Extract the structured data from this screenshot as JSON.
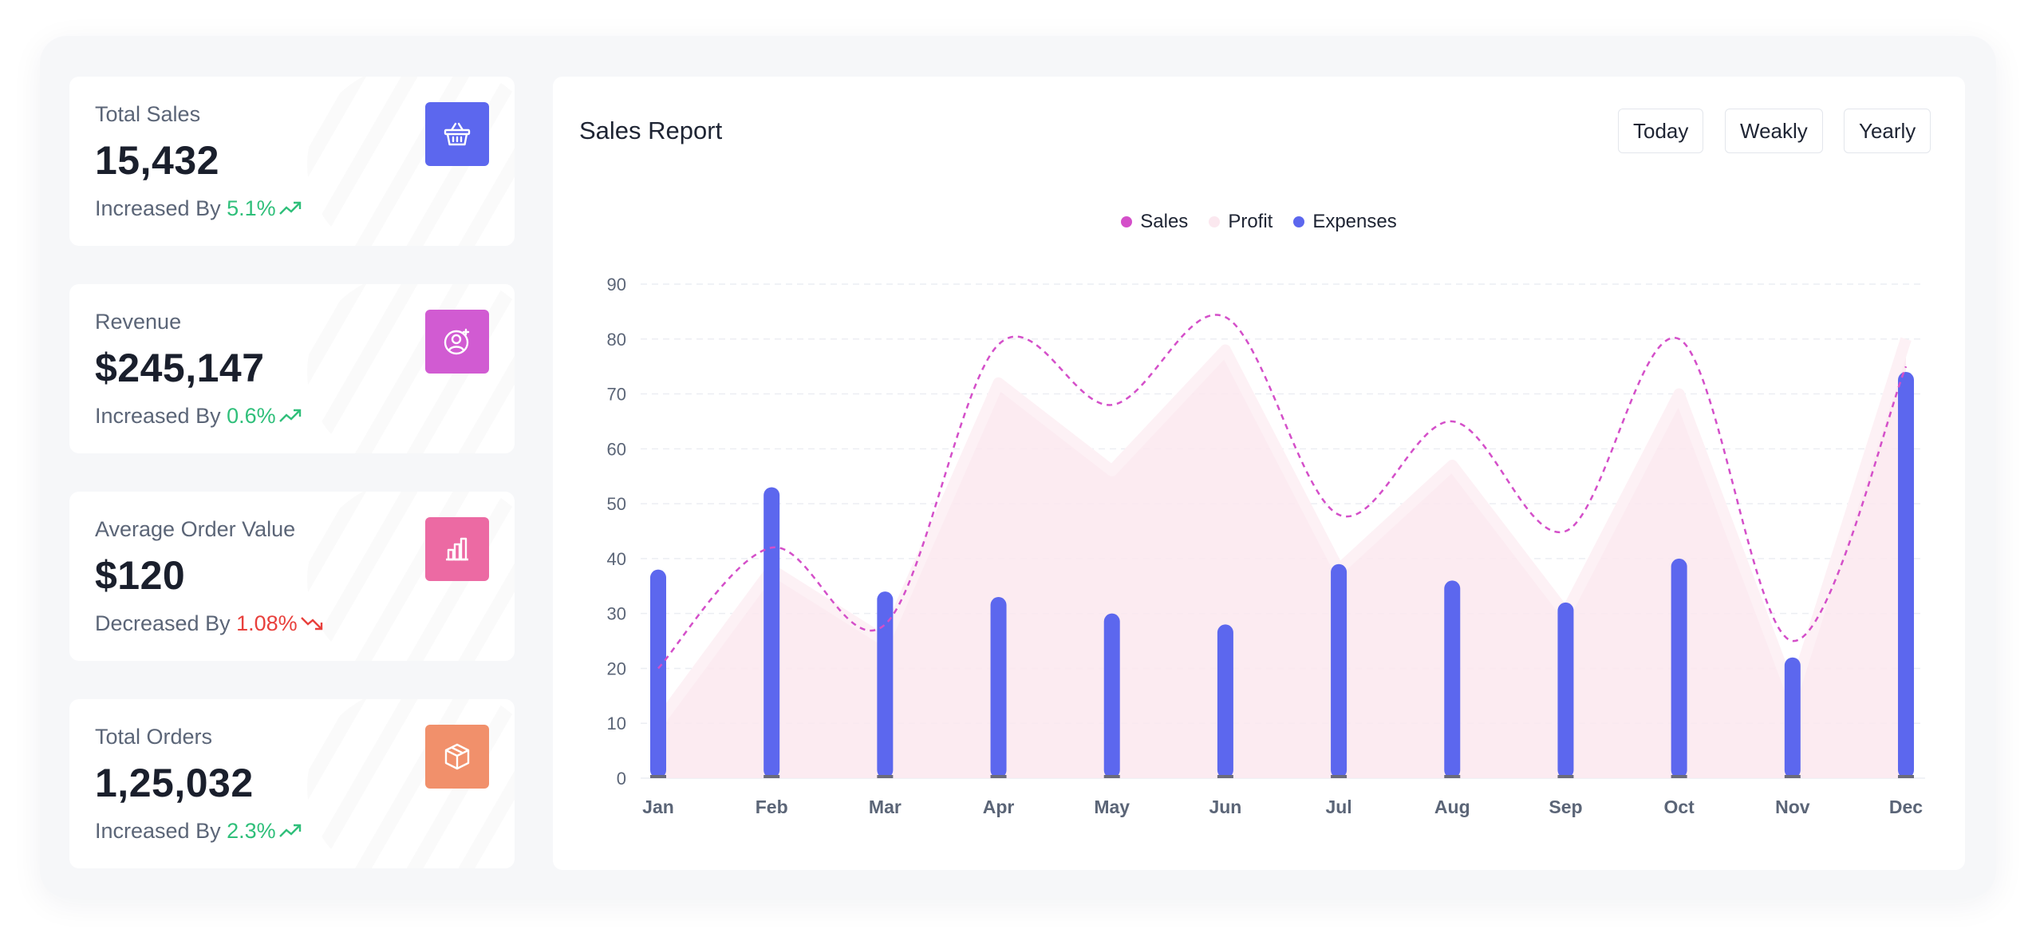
{
  "cards": [
    {
      "title": "Total Sales",
      "value": "15,432",
      "trend_label": "Increased By",
      "trend_value": "5.1%",
      "trend_dir": "up",
      "icon": "basket-icon",
      "icon_bg": "#5c67ee"
    },
    {
      "title": "Revenue",
      "value": "$245,147",
      "trend_label": "Increased By",
      "trend_value": "0.6%",
      "trend_dir": "up",
      "icon": "user-add-icon",
      "icon_bg": "#d15bd2"
    },
    {
      "title": "Average Order Value",
      "value": "$120",
      "trend_label": "Decreased By",
      "trend_value": "1.08%",
      "trend_dir": "down",
      "icon": "bar-chart-icon",
      "icon_bg": "#ec6aa3"
    },
    {
      "title": "Total Orders",
      "value": "1,25,032",
      "trend_label": "Increased By",
      "trend_value": "2.3%",
      "trend_dir": "up",
      "icon": "box-icon",
      "icon_bg": "#f1906b"
    }
  ],
  "report": {
    "title": "Sales Report",
    "buttons": [
      "Today",
      "Weakly",
      "Yearly"
    ]
  },
  "colors": {
    "sales": "#d44fc9",
    "profit": "#fbe8ef",
    "expenses": "#5c67ee",
    "up": "#2fbf7a",
    "down": "#e8403c"
  },
  "chart_data": {
    "type": "bar",
    "categories": [
      "Jan",
      "Feb",
      "Mar",
      "Apr",
      "May",
      "Jun",
      "Jul",
      "Aug",
      "Sep",
      "Oct",
      "Nov",
      "Dec"
    ],
    "series": [
      {
        "name": "Sales",
        "type": "line",
        "style": "dashed",
        "values": [
          20,
          42,
          28,
          79,
          68,
          84,
          48,
          65,
          45,
          80,
          25,
          75
        ]
      },
      {
        "name": "Profit",
        "type": "area",
        "values": [
          10,
          38,
          25,
          72,
          56,
          78,
          38,
          57,
          30,
          70,
          15,
          80
        ]
      },
      {
        "name": "Expenses",
        "type": "bar",
        "values": [
          38,
          53,
          34,
          33,
          30,
          28,
          39,
          36,
          32,
          40,
          22,
          74
        ]
      }
    ],
    "y_ticks": [
      0,
      10,
      20,
      30,
      40,
      50,
      60,
      70,
      80,
      90
    ],
    "ylim": [
      0,
      90
    ],
    "grid": "horizontal dashed",
    "legend": "top-center"
  }
}
